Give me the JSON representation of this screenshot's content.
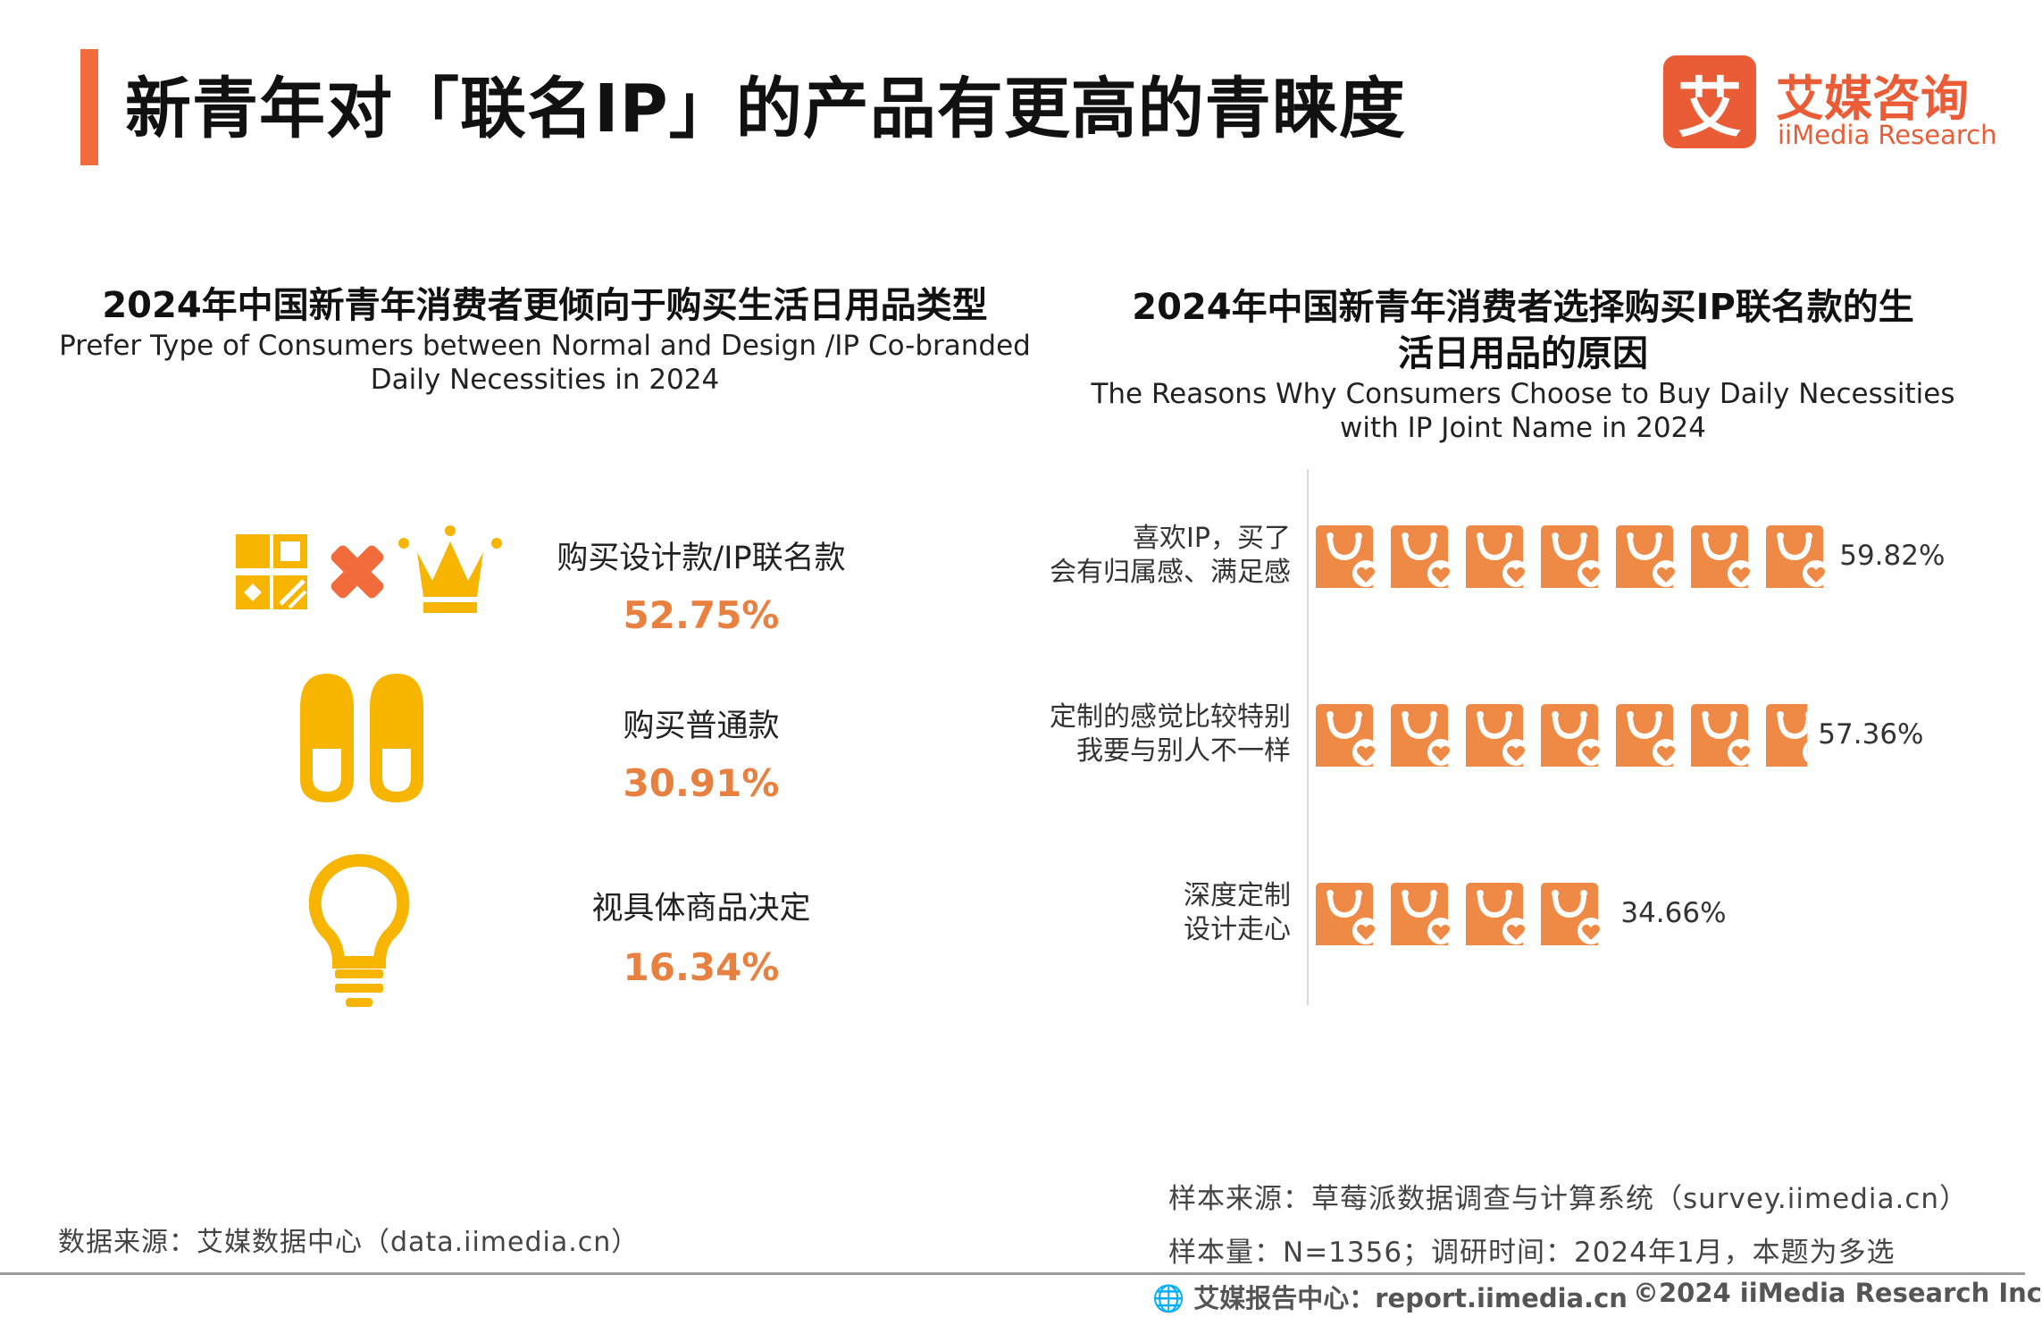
{
  "header": {
    "title": "新青年对「联名IP」的产品有更高的青睐度",
    "logo_mark": "艾",
    "logo_cn": "艾媒咨询",
    "logo_en": "iiMedia Research",
    "accent_color": "#F26B3A"
  },
  "left_panel": {
    "title": "2024年中国新青年消费者更倾向于购买生活日用品类型",
    "subtitle_line1": "Prefer Type of Consumers between Normal and Design /IP Co-branded",
    "subtitle_line2": "Daily Necessities in 2024",
    "items": [
      {
        "label": "购买设计款/IP联名款",
        "value": "52.75%",
        "icon": "crown-grid-icon"
      },
      {
        "label": "购买普通款",
        "value": "30.91%",
        "icon": "slippers-icon"
      },
      {
        "label": "视具体商品决定",
        "value": "16.34%",
        "icon": "lightbulb-icon"
      }
    ]
  },
  "right_panel": {
    "title_line1": "2024年中国新青年消费者选择购买IP联名款的生",
    "title_line2": "活日用品的原因",
    "subtitle_line1": "The Reasons Why Consumers Choose to Buy Daily Necessities",
    "subtitle_line2": "with IP Joint Name in 2024"
  },
  "chart_data": {
    "type": "bar",
    "orientation": "horizontal",
    "pictogram_icon": "shopping-bag-icon",
    "bar_color": "#EE8A45",
    "categories": [
      [
        "喜欢IP，买了",
        "会有归属感、满足感"
      ],
      [
        "定制的感觉比较特别",
        "我要与别人不一样"
      ],
      [
        "深度定制",
        "设计走心"
      ]
    ],
    "values": [
      59.82,
      57.36,
      34.66
    ],
    "value_labels": [
      "59.82%",
      "57.36%",
      "34.66%"
    ],
    "unit": "%"
  },
  "footer": {
    "source_left": "数据来源：艾媒数据中心（data.iimedia.cn）",
    "source_right_line1": "样本来源：草莓派数据调查与计算系统（survey.iimedia.cn）",
    "source_right_line2": "样本量：N=1356；调研时间：2024年1月，本题为多选",
    "report_center": "艾媒报告中心：report.iimedia.cn",
    "copyright": "©2024  iiMedia Research  Inc"
  }
}
